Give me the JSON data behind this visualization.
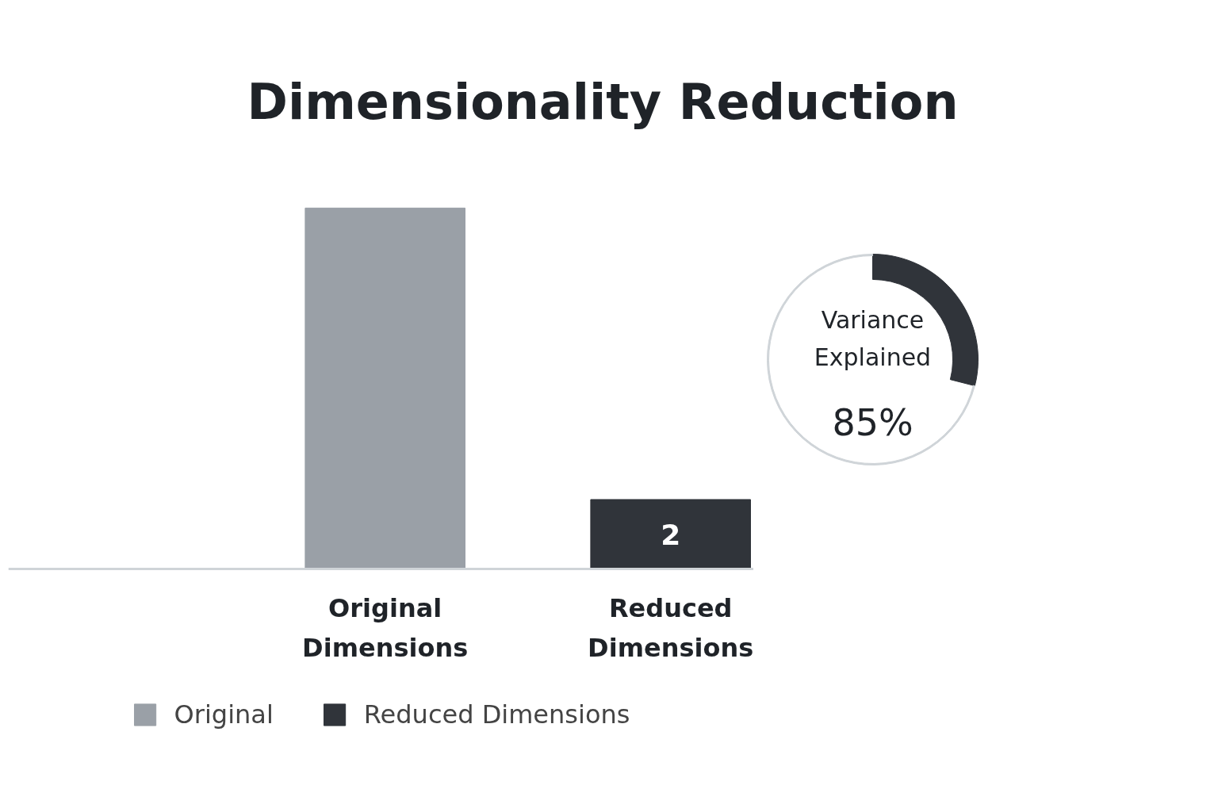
{
  "chart_data": [
    {
      "type": "bar",
      "title": "Dimensionality Reduction",
      "categories": [
        "Original Dimensions",
        "Reduced Dimensions"
      ],
      "series": [
        {
          "name": "Original",
          "color": "#9aa0a7",
          "values": [
            10.4,
            null
          ]
        },
        {
          "name": "Reduced Dimensions",
          "color": "#30343a",
          "values": [
            null,
            2
          ],
          "value_labels": [
            null,
            "2"
          ]
        }
      ],
      "tick_labels": "x",
      "grid": false,
      "legend": "bottom"
    },
    {
      "type": "donut",
      "categories": [
        null,
        null
      ],
      "values": [
        29,
        71
      ],
      "colors": [
        "#30343a",
        "#cfd4d8"
      ],
      "annotations": [
        "Variance Explained",
        "85%"
      ]
    }
  ]
}
